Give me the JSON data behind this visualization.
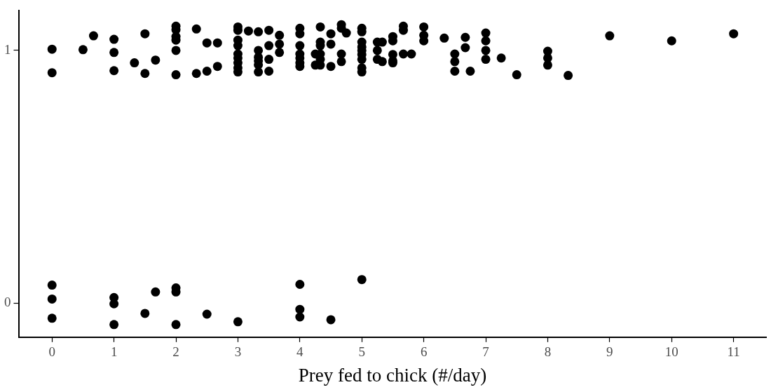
{
  "chart_data": {
    "type": "scatter",
    "xlabel": "Prey fed to chick (#/day)",
    "marker": "circle",
    "grid": false,
    "legend": false,
    "xlim": [
      -0.54,
      11.53
    ],
    "xticks": [
      0,
      1,
      2,
      3,
      4,
      5,
      6,
      7,
      8,
      9,
      10,
      11
    ],
    "ylim": [
      -0.135,
      1.157
    ],
    "yticks": [
      0,
      1
    ],
    "series": [
      {
        "color": "#000000",
        "x": [
          0,
          0,
          0.5,
          0.67,
          1,
          1,
          1,
          1.33,
          1.5,
          1.5,
          1.67,
          2,
          2,
          2,
          2,
          2,
          2,
          2.33,
          2.33,
          2.5,
          2.5,
          2.67,
          2.67,
          3,
          3,
          3,
          3,
          3,
          3,
          3,
          3,
          3,
          3.17,
          3.33,
          3.33,
          3.33,
          3.33,
          3.33,
          3.33,
          3.5,
          3.5,
          3.5,
          3.5,
          3.67,
          3.67,
          3.67,
          4,
          4,
          4,
          4,
          4,
          4,
          4,
          4.25,
          4.25,
          4.33,
          4.33,
          4.33,
          4.33,
          4.33,
          4.33,
          4.5,
          4.5,
          4.5,
          4.67,
          4.67,
          4.67,
          4.67,
          4.75,
          5,
          5,
          5,
          5,
          5,
          5,
          5,
          5,
          5,
          5.25,
          5.25,
          5.25,
          5.33,
          5.33,
          5.5,
          5.5,
          5.5,
          5.5,
          5.5,
          5.67,
          5.67,
          5.67,
          5.8,
          6,
          6,
          6,
          6.33,
          6.5,
          6.5,
          6.5,
          6.67,
          6.67,
          6.75,
          7,
          7,
          7,
          7,
          7.25,
          7.5,
          8,
          8,
          8,
          8.33,
          9,
          10,
          11,
          0,
          0,
          0,
          1,
          1,
          1,
          1.5,
          1.67,
          2,
          2,
          2,
          2.5,
          3,
          4,
          4,
          4,
          4.5,
          5
        ],
        "values": [
          1.005,
          0.912,
          1.003,
          1.058,
          1.044,
          0.992,
          0.92,
          0.951,
          1.066,
          0.909,
          0.962,
          1.096,
          1.082,
          1.055,
          1.041,
          1.0,
          0.904,
          1.085,
          0.909,
          1.03,
          0.918,
          1.03,
          0.937,
          1.093,
          1.08,
          1.041,
          1.019,
          0.986,
          0.97,
          0.951,
          0.931,
          0.915,
          1.077,
          1.074,
          1.0,
          0.973,
          0.959,
          0.943,
          0.915,
          1.08,
          1.019,
          0.965,
          0.918,
          1.06,
          1.025,
          0.992,
          1.088,
          1.066,
          1.019,
          0.986,
          0.97,
          0.951,
          0.937,
          0.986,
          0.942,
          1.093,
          1.033,
          1.019,
          0.986,
          0.965,
          0.942,
          1.066,
          1.025,
          0.937,
          1.102,
          1.088,
          0.986,
          0.956,
          1.069,
          1.088,
          1.074,
          1.033,
          1.014,
          1.0,
          0.984,
          0.965,
          0.931,
          0.915,
          1.033,
          1.0,
          0.965,
          1.033,
          0.956,
          1.055,
          1.038,
          0.984,
          0.959,
          0.951,
          1.096,
          1.08,
          0.986,
          0.986,
          1.093,
          1.06,
          1.038,
          1.049,
          0.986,
          0.956,
          0.918,
          1.052,
          1.011,
          0.918,
          1.069,
          1.038,
          1.0,
          0.965,
          0.97,
          0.904,
          0.997,
          0.97,
          0.942,
          0.901,
          1.058,
          1.038,
          1.066,
          0.071,
          0.016,
          -0.06,
          0.022,
          -0.003,
          -0.085,
          -0.041,
          0.044,
          0.06,
          0.044,
          -0.085,
          -0.044,
          -0.074,
          0.074,
          -0.025,
          -0.055,
          -0.066,
          0.093
        ]
      }
    ]
  }
}
